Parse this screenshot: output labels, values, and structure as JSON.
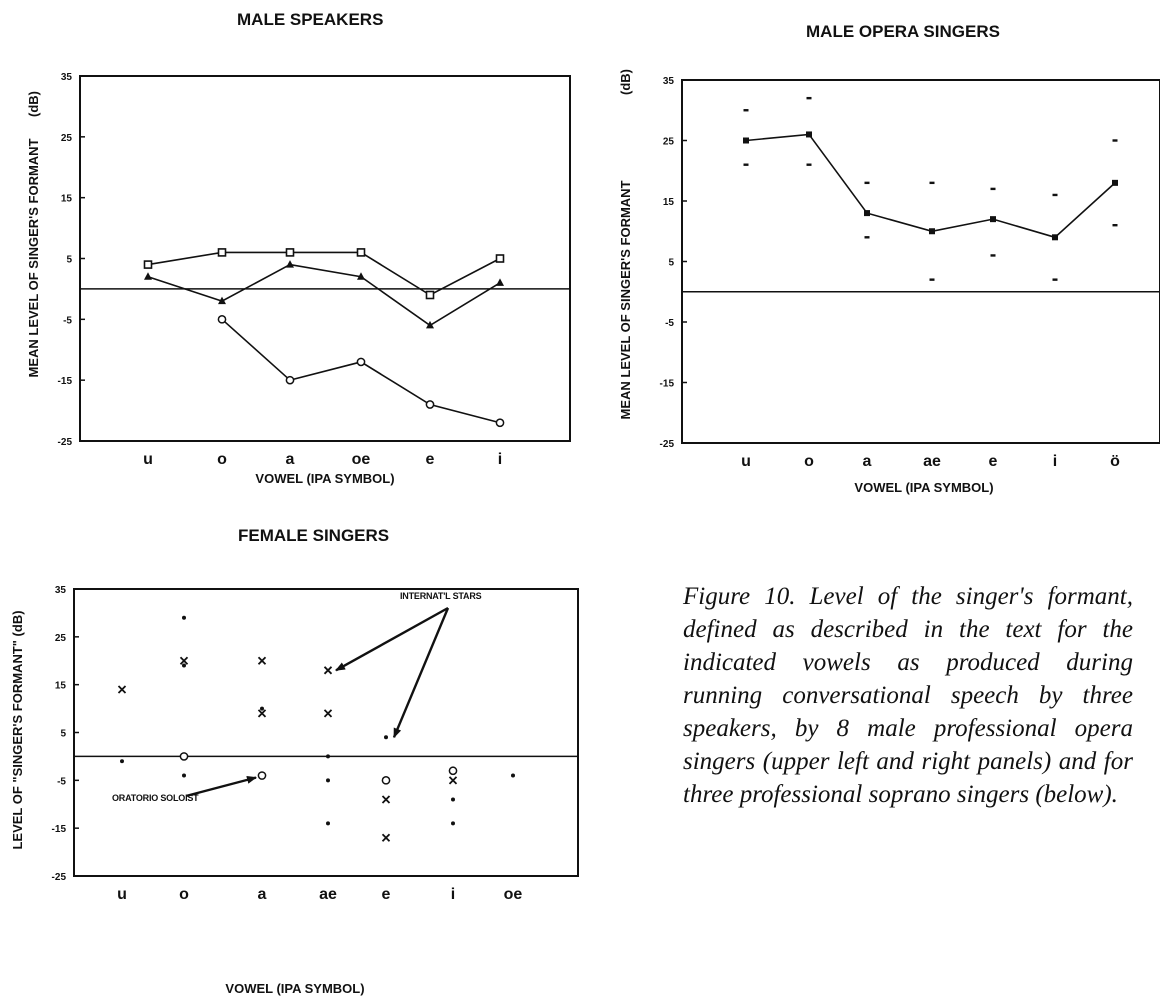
{
  "caption": "Figure 10. Level of the singer's formant, defined as described in the text for the indicated vowels as produced during running conversational speech by three speakers, by 8 male professional opera singers (upper left and right panels) and for three professional soprano singers (below).",
  "chart_data": [
    {
      "type": "line",
      "title": "MALE SPEAKERS",
      "xlabel": "VOWEL (IPA SYMBOL)",
      "ylabel": "MEAN LEVEL OF SINGER'S FORMANT",
      "yunit": "(dB)",
      "categories": [
        "u",
        "o",
        "a",
        "oe",
        "e",
        "i"
      ],
      "yticks": [
        35,
        25,
        15,
        5,
        -5,
        -15,
        -25
      ],
      "ylim": [
        -25,
        35
      ],
      "reference_line": 0,
      "series": [
        {
          "marker": "square",
          "values": [
            4,
            6,
            6,
            6,
            -1,
            5
          ]
        },
        {
          "marker": "triangle",
          "values": [
            2,
            -2,
            4,
            2,
            -6,
            1
          ]
        },
        {
          "marker": "circle",
          "values": [
            null,
            -5,
            -15,
            -12,
            -19,
            -22
          ]
        }
      ]
    },
    {
      "type": "line",
      "title": "MALE OPERA SINGERS",
      "xlabel": "VOWEL (IPA SYMBOL)",
      "ylabel": "MEAN LEVEL OF SINGER'S FORMANT",
      "yunit": "(dB)",
      "categories": [
        "u",
        "o",
        "a",
        "ae",
        "e",
        "i",
        "ö"
      ],
      "yticks": [
        35,
        25,
        15,
        5,
        -5,
        -15,
        -25
      ],
      "ylim": [
        -25,
        35
      ],
      "reference_line": 0,
      "series": [
        {
          "marker": "square",
          "values": [
            25,
            26,
            13,
            10,
            12,
            9,
            18
          ]
        }
      ],
      "upper": [
        30,
        32,
        18,
        18,
        17,
        16,
        25
      ],
      "lower": [
        21,
        21,
        9,
        2,
        6,
        2,
        11
      ]
    },
    {
      "type": "scatter",
      "title": "FEMALE SINGERS",
      "xlabel": "VOWEL (IPA SYMBOL)",
      "ylabel": "LEVEL OF \"SINGER'S FORMANT\" (dB)",
      "categories": [
        "u",
        "o",
        "a",
        "ae",
        "e",
        "i",
        "oe"
      ],
      "yticks": [
        35,
        25,
        15,
        5,
        -5,
        -15,
        -25
      ],
      "ylim": [
        -25,
        35
      ],
      "reference_line": 0,
      "points": [
        {
          "x": "u",
          "y": 14,
          "marker": "x"
        },
        {
          "x": "u",
          "y": -1,
          "marker": "dot"
        },
        {
          "x": "o",
          "y": 29,
          "marker": "dot"
        },
        {
          "x": "o",
          "y": 20,
          "marker": "x"
        },
        {
          "x": "o",
          "y": 19,
          "marker": "dot"
        },
        {
          "x": "o",
          "y": 0,
          "marker": "circle"
        },
        {
          "x": "o",
          "y": -4,
          "marker": "dot"
        },
        {
          "x": "a",
          "y": 20,
          "marker": "x"
        },
        {
          "x": "a",
          "y": 10,
          "marker": "dot"
        },
        {
          "x": "a",
          "y": 9,
          "marker": "x"
        },
        {
          "x": "a",
          "y": -4,
          "marker": "circle"
        },
        {
          "x": "ae",
          "y": 18,
          "marker": "x"
        },
        {
          "x": "ae",
          "y": 9,
          "marker": "x"
        },
        {
          "x": "ae",
          "y": 0,
          "marker": "dot"
        },
        {
          "x": "ae",
          "y": -5,
          "marker": "dot"
        },
        {
          "x": "ae",
          "y": -14,
          "marker": "dot"
        },
        {
          "x": "e",
          "y": 4,
          "marker": "dot"
        },
        {
          "x": "e",
          "y": -5,
          "marker": "circle"
        },
        {
          "x": "e",
          "y": -9,
          "marker": "x"
        },
        {
          "x": "e",
          "y": -17,
          "marker": "x"
        },
        {
          "x": "i",
          "y": -3,
          "marker": "circle"
        },
        {
          "x": "i",
          "y": -5,
          "marker": "x"
        },
        {
          "x": "i",
          "y": -9,
          "marker": "dot"
        },
        {
          "x": "i",
          "y": -14,
          "marker": "dot"
        },
        {
          "x": "oe",
          "y": -4,
          "marker": "dot"
        }
      ],
      "annotations": [
        {
          "text": "INTERNAT'L STARS",
          "targets": [
            [
              "ae",
              18
            ],
            [
              "e",
              4
            ]
          ]
        },
        {
          "text": "ORATORIO SOLOIST",
          "targets": [
            [
              "a",
              -4
            ]
          ]
        }
      ]
    }
  ]
}
